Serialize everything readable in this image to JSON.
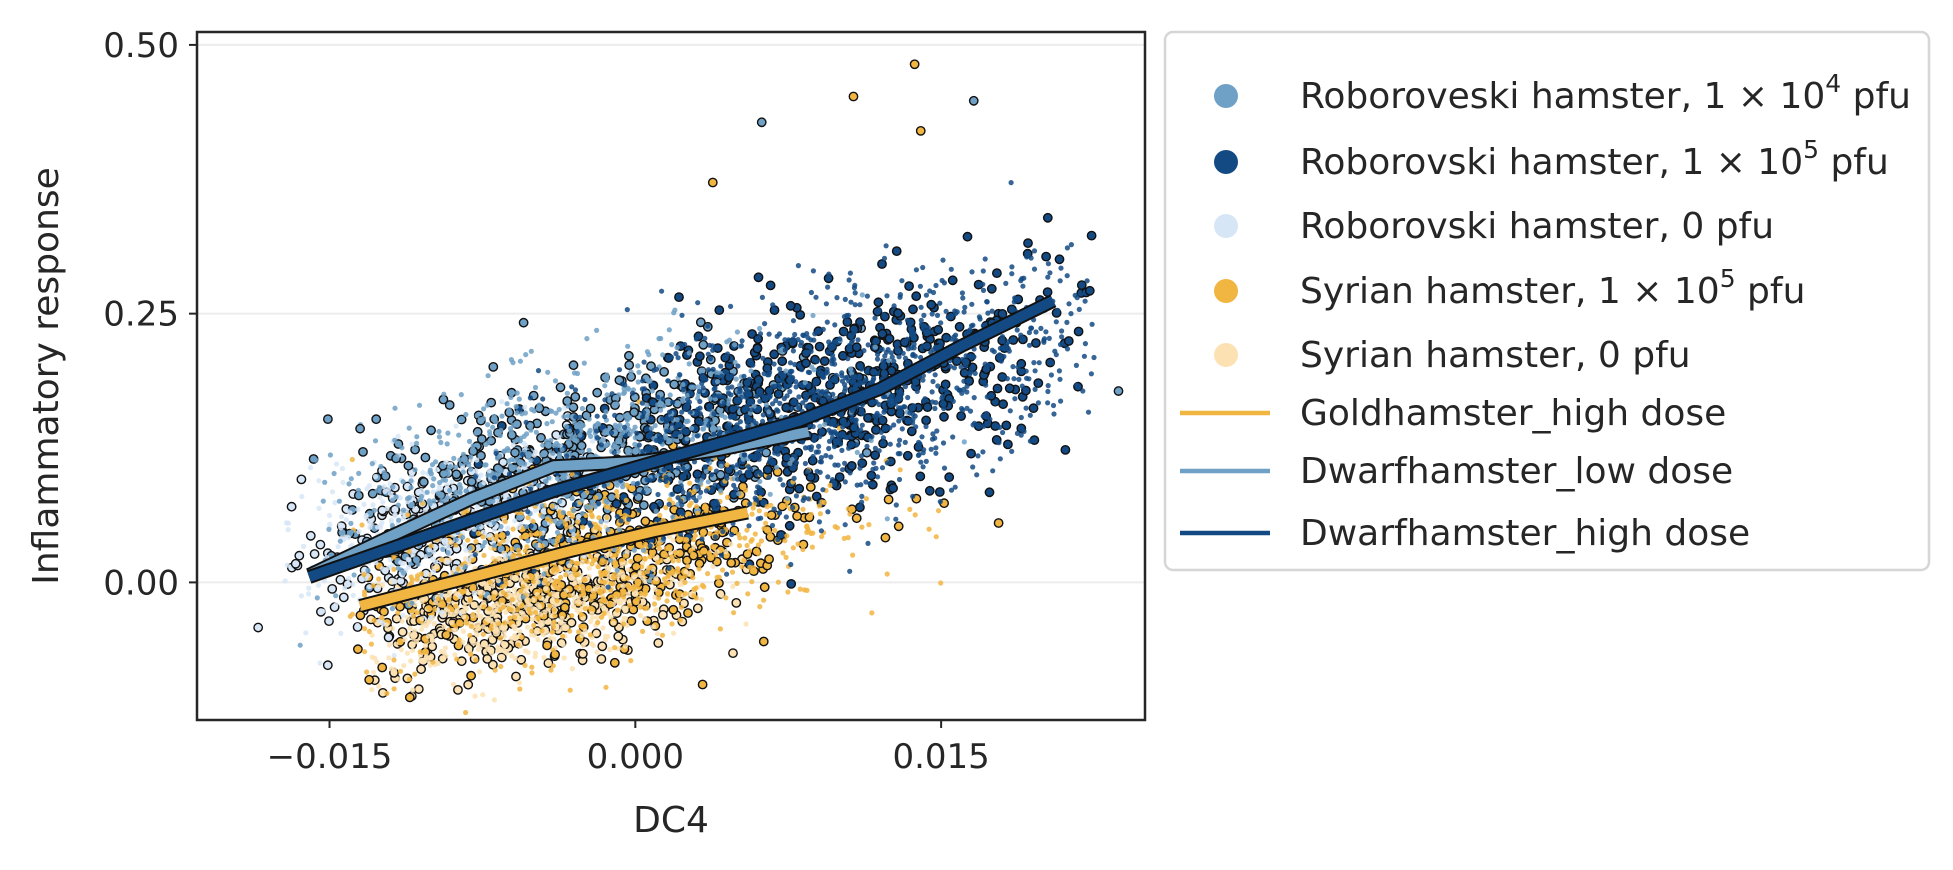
{
  "chart_data": {
    "type": "scatter",
    "xlabel": "DC4",
    "ylabel": "Inflammatory response",
    "xlim": [
      -0.0215,
      0.025
    ],
    "ylim": [
      -0.128,
      0.512
    ],
    "x_ticks": [
      -0.015,
      0.0,
      0.015
    ],
    "x_tick_labels": [
      "−0.015",
      "0.000",
      "0.015"
    ],
    "y_ticks": [
      0.0,
      0.25,
      0.5
    ],
    "y_tick_labels": [
      "0.00",
      "0.25",
      "0.50"
    ],
    "grid": "horizontal, light",
    "legend_position": "outside right, top",
    "colors": {
      "robo_1e4": "#6fa0c6",
      "robo_1e5": "#134a84",
      "robo_0": "#d7e6f7",
      "syrian_1e5": "#f1b541",
      "syrian_0": "#fce2b3",
      "gold_high_line": "#f1b541",
      "dwarf_low_line": "#6fa0c6",
      "dwarf_high_line": "#134a84"
    },
    "legend": [
      {
        "key": "robo_1e4",
        "kind": "marker",
        "prefix": "Roboroveski hamster, 1 × 10",
        "sup": "4",
        "suffix": " pfu"
      },
      {
        "key": "robo_1e5",
        "kind": "marker",
        "prefix": "Roborovski hamster, 1 × 10",
        "sup": "5",
        "suffix": " pfu"
      },
      {
        "key": "robo_0",
        "kind": "marker",
        "prefix": "Roborovski hamster, 0 pfu",
        "sup": "",
        "suffix": ""
      },
      {
        "key": "syrian_1e5",
        "kind": "marker",
        "prefix": "Syrian hamster, 1 × 10",
        "sup": "5",
        "suffix": " pfu"
      },
      {
        "key": "syrian_0",
        "kind": "marker",
        "prefix": "Syrian hamster, 0 pfu",
        "sup": "",
        "suffix": ""
      },
      {
        "key": "gold_high_line",
        "kind": "line",
        "prefix": "Goldhamster_high dose",
        "sup": "",
        "suffix": ""
      },
      {
        "key": "dwarf_low_line",
        "kind": "line",
        "prefix": "Dwarfhamster_low dose",
        "sup": "",
        "suffix": ""
      },
      {
        "key": "dwarf_high_line",
        "kind": "line",
        "prefix": "Dwarfhamster_high dose",
        "sup": "",
        "suffix": ""
      }
    ],
    "scatter_groups": [
      {
        "key": "syrian_0",
        "center": [
          -0.006,
          -0.025
        ],
        "spread": [
          0.0048,
          0.032
        ],
        "corr": 0.45,
        "n": 900,
        "x_range": [
          -0.013,
          0.0055
        ]
      },
      {
        "key": "robo_0",
        "center": [
          -0.01,
          0.05
        ],
        "spread": [
          0.004,
          0.04
        ],
        "corr": 0.5,
        "n": 600,
        "x_range": [
          -0.0175,
          -0.001
        ]
      },
      {
        "key": "syrian_1e5",
        "center": [
          -0.002,
          0.02
        ],
        "spread": [
          0.006,
          0.045
        ],
        "corr": 0.5,
        "n": 1000,
        "x_range": [
          -0.014,
          0.018
        ]
      },
      {
        "key": "robo_1e4",
        "center": [
          -0.003,
          0.115
        ],
        "spread": [
          0.006,
          0.05
        ],
        "corr": 0.55,
        "n": 1100,
        "x_range": [
          -0.0165,
          0.019
        ]
      },
      {
        "key": "robo_1e5",
        "center": [
          0.01,
          0.17
        ],
        "spread": [
          0.007,
          0.06
        ],
        "corr": 0.6,
        "n": 1700,
        "x_range": [
          -0.01,
          0.0225
        ]
      }
    ],
    "outliers": [
      {
        "key": "syrian_1e5",
        "x": 0.0137,
        "y": 0.482
      },
      {
        "key": "syrian_1e5",
        "x": 0.0107,
        "y": 0.452
      },
      {
        "key": "robo_1e4",
        "x": 0.0166,
        "y": 0.448
      },
      {
        "key": "robo_1e4",
        "x": 0.0062,
        "y": 0.428
      },
      {
        "key": "syrian_1e5",
        "x": 0.014,
        "y": 0.42
      },
      {
        "key": "syrian_1e5",
        "x": 0.0038,
        "y": 0.372
      },
      {
        "key": "robo_1e4",
        "x": 0.0237,
        "y": 0.178
      },
      {
        "key": "syrian_1e5",
        "x": 0.0033,
        "y": -0.095
      },
      {
        "key": "syrian_1e5",
        "x": 0.0063,
        "y": -0.055
      },
      {
        "key": "robo_0",
        "x": -0.0185,
        "y": -0.042
      },
      {
        "key": "syrian_0",
        "x": -0.0087,
        "y": -0.1
      },
      {
        "key": "robo_1e4",
        "x": -0.0135,
        "y": 0.143
      }
    ],
    "series": [
      {
        "name": "Goldhamster_high dose",
        "key": "gold_high_line",
        "x": [
          -0.0135,
          -0.008,
          -0.003,
          0.001,
          0.0055
        ],
        "y": [
          -0.022,
          0.005,
          0.03,
          0.048,
          0.065
        ]
      },
      {
        "name": "Dwarfhamster_low dose",
        "key": "dwarf_low_line",
        "x": [
          -0.016,
          -0.012,
          -0.008,
          -0.004,
          0.0,
          0.004,
          0.0085
        ],
        "y": [
          0.007,
          0.043,
          0.078,
          0.108,
          0.112,
          0.123,
          0.14
        ]
      },
      {
        "name": "Dwarfhamster_high dose",
        "key": "dwarf_high_line",
        "x": [
          -0.016,
          -0.01,
          -0.004,
          0.002,
          0.008,
          0.012,
          0.016,
          0.0205
        ],
        "y": [
          0.005,
          0.045,
          0.085,
          0.118,
          0.15,
          0.18,
          0.22,
          0.262
        ]
      }
    ]
  }
}
